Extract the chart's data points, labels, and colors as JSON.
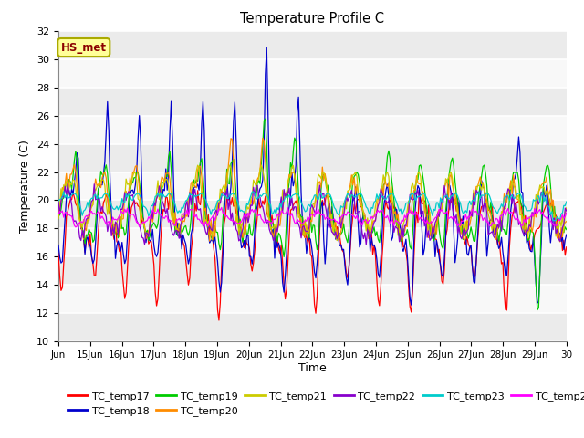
{
  "title": "Temperature Profile C",
  "xlabel": "Time",
  "ylabel": "Temperature (C)",
  "ylim": [
    10,
    32
  ],
  "xlim": [
    0,
    1
  ],
  "annotation_text": "HS_met",
  "annotation_color": "#8B0000",
  "annotation_bg": "#FFFF99",
  "annotation_edge": "#AAAA00",
  "series_colors": {
    "TC_temp17": "#FF0000",
    "TC_temp18": "#0000CD",
    "TC_temp19": "#00CC00",
    "TC_temp20": "#FF8C00",
    "TC_temp21": "#CCCC00",
    "TC_temp22": "#8800CC",
    "TC_temp23": "#00CCCC",
    "TC_temp24": "#FF00FF"
  },
  "xtick_labels": [
    "Jun",
    "15Jun",
    "16Jun",
    "17Jun",
    "18Jun",
    "19Jun",
    "20Jun",
    "21Jun",
    "22Jun",
    "23Jun",
    "24Jun",
    "25Jun",
    "26Jun",
    "27Jun",
    "28Jun",
    "29Jun",
    "30"
  ],
  "ytick_positions": [
    10,
    12,
    14,
    16,
    18,
    20,
    22,
    24,
    26,
    28,
    30,
    32
  ],
  "plot_bg_even": "#EBEBEB",
  "plot_bg_odd": "#F8F8F8",
  "figsize": [
    6.4,
    4.8
  ],
  "dpi": 100
}
